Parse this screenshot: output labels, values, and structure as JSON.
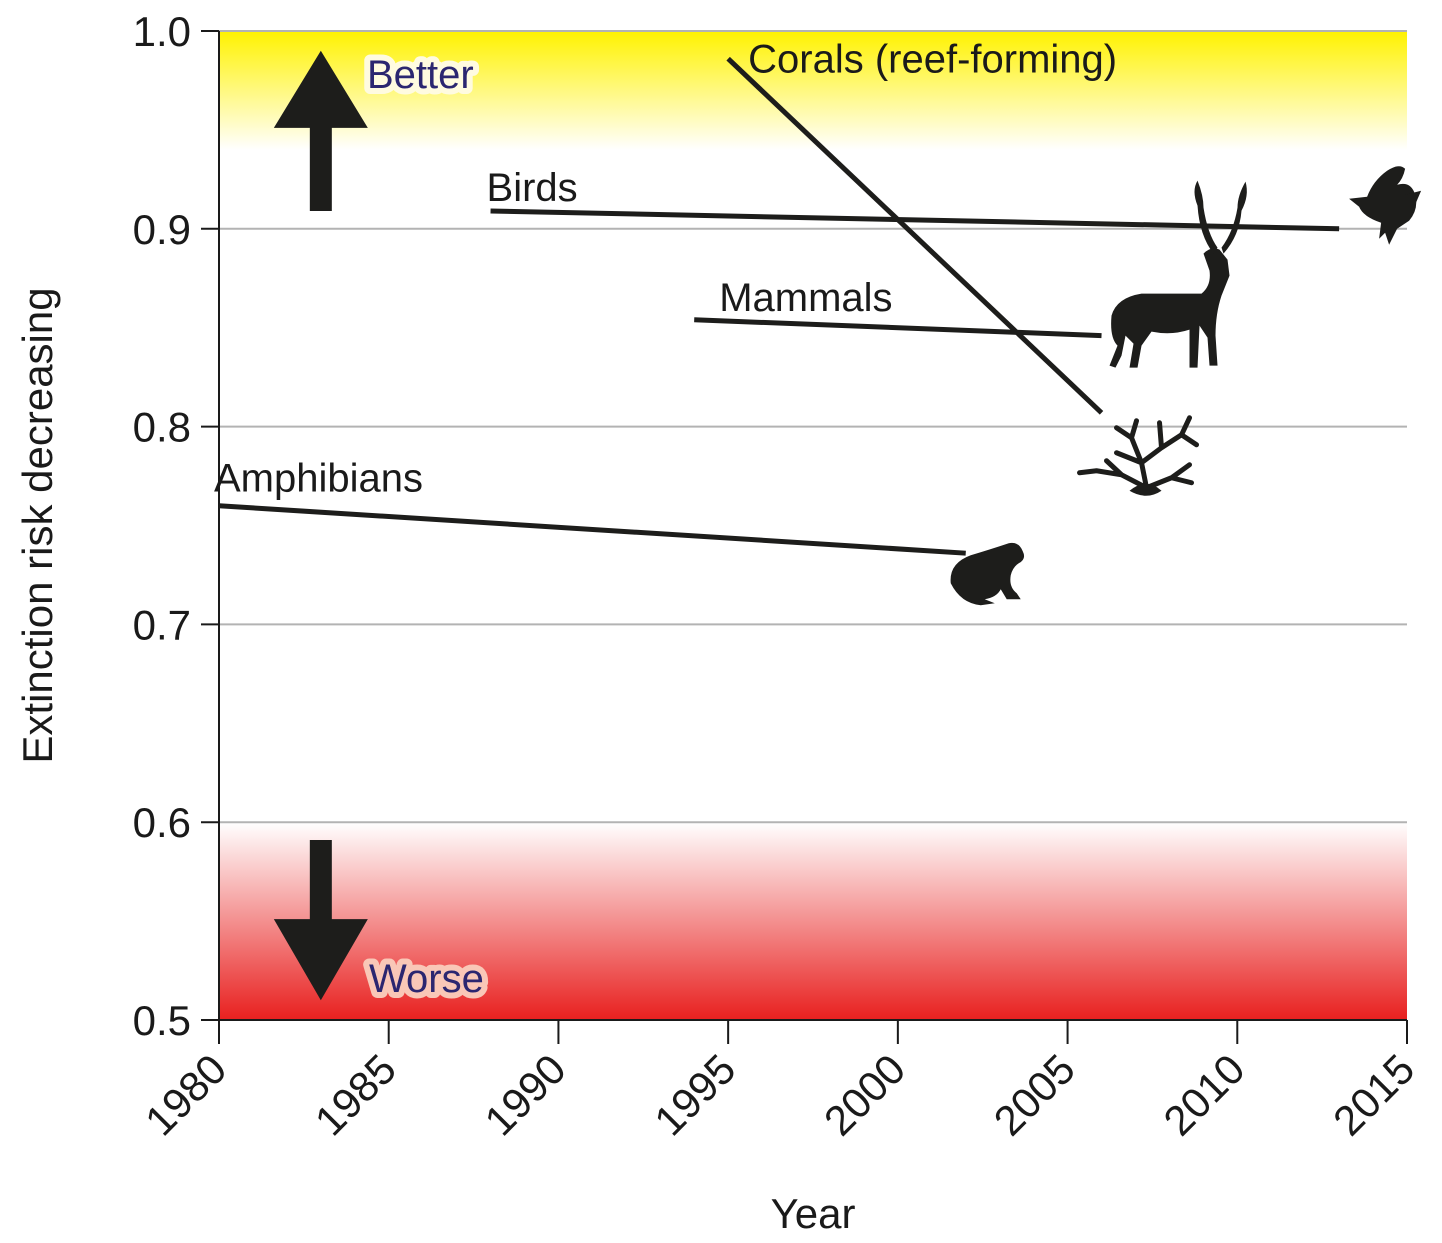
{
  "chart_data": {
    "type": "line",
    "title": "",
    "xlabel": "Year",
    "ylabel": "Extinction risk decreasing",
    "xlim": [
      1980,
      2015
    ],
    "ylim": [
      0.5,
      1.0
    ],
    "xticks": [
      "1980",
      "1985",
      "1990",
      "1995",
      "2000",
      "2005",
      "2010",
      "2015"
    ],
    "yticks": [
      "0.5",
      "0.6",
      "0.7",
      "0.8",
      "0.9",
      "1.0"
    ],
    "grid": "horizontal",
    "zones": [
      {
        "label": "Better",
        "from": 0.94,
        "to": 1.0,
        "color": "#fff200",
        "arrow": "up"
      },
      {
        "label": "Worse",
        "from": 0.5,
        "to": 0.6,
        "color": "#e8201f",
        "arrow": "down"
      }
    ],
    "series": [
      {
        "name": "Corals (reef-forming)",
        "x": [
          1995,
          2006
        ],
        "y": [
          0.986,
          0.807
        ],
        "icon": "coral-icon"
      },
      {
        "name": "Birds",
        "x": [
          1988,
          2013
        ],
        "y": [
          0.909,
          0.9
        ],
        "icon": "bird-icon"
      },
      {
        "name": "Mammals",
        "x": [
          1994,
          2006
        ],
        "y": [
          0.854,
          0.846
        ],
        "icon": "deer-icon"
      },
      {
        "name": "Amphibians",
        "x": [
          1980,
          2002
        ],
        "y": [
          0.76,
          0.736
        ],
        "icon": "frog-icon"
      }
    ]
  }
}
